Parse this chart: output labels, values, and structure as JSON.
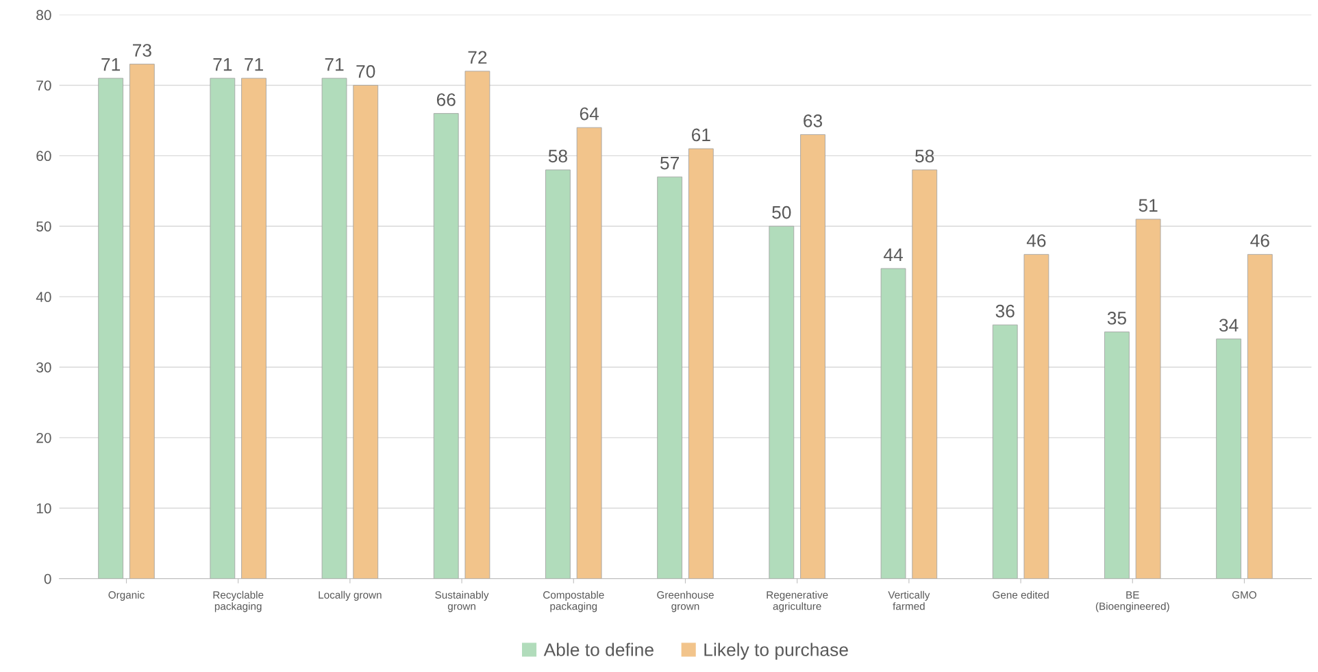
{
  "chart_data": {
    "type": "bar",
    "categories": [
      "Organic",
      "Recyclable\npackaging",
      "Locally grown",
      "Sustainably\ngrown",
      "Compostable\npackaging",
      "Greenhouse\ngrown",
      "Regenerative\nagriculture",
      "Vertically\nfarmed",
      "Gene edited",
      "BE\n(Bioengineered)",
      "GMO"
    ],
    "series": [
      {
        "name": "Able to define",
        "color": "#b1dcbb",
        "values": [
          71,
          71,
          71,
          66,
          58,
          57,
          50,
          44,
          36,
          35,
          34
        ]
      },
      {
        "name": "Likely to purchase",
        "color": "#f2c48b",
        "values": [
          73,
          71,
          70,
          72,
          64,
          61,
          63,
          58,
          46,
          51,
          46
        ]
      }
    ],
    "ylim": [
      0,
      80
    ],
    "yticks": [
      0,
      10,
      20,
      30,
      40,
      50,
      60,
      70,
      80
    ],
    "grid": "y",
    "legend": "bottom",
    "data_labels": true
  }
}
